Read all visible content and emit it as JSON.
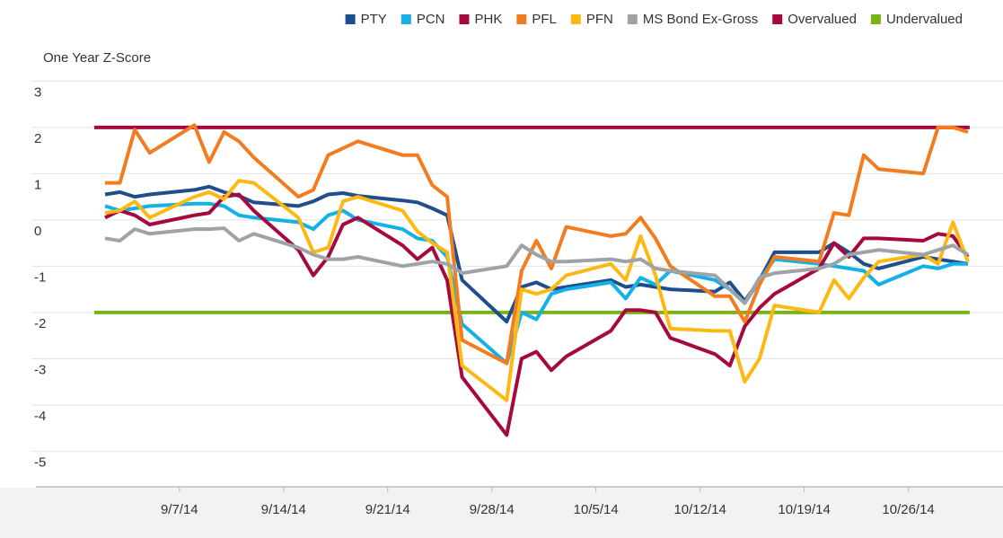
{
  "chart_data": {
    "type": "line",
    "y_label": "One Year Z-Score",
    "x": [
      "9/2/14",
      "9/3/14",
      "9/4/14",
      "9/5/14",
      "9/8/14",
      "9/9/14",
      "9/10/14",
      "9/11/14",
      "9/12/14",
      "9/15/14",
      "9/16/14",
      "9/17/14",
      "9/18/14",
      "9/19/14",
      "9/22/14",
      "9/23/14",
      "9/24/14",
      "9/25/14",
      "9/26/14",
      "9/29/14",
      "9/30/14",
      "10/1/14",
      "10/2/14",
      "10/3/14",
      "10/6/14",
      "10/7/14",
      "10/8/14",
      "10/9/14",
      "10/10/14",
      "10/13/14",
      "10/14/14",
      "10/15/14",
      "10/16/14",
      "10/17/14",
      "10/20/14",
      "10/21/14",
      "10/22/14",
      "10/23/14",
      "10/24/14",
      "10/27/14",
      "10/28/14",
      "10/29/14",
      "10/30/14"
    ],
    "xlim": [
      "8/26/14",
      "11/1/14"
    ],
    "xticks": [
      "9/7/14",
      "9/14/14",
      "9/21/14",
      "9/28/14",
      "10/5/14",
      "10/12/14",
      "10/19/14",
      "10/26/14"
    ],
    "ylim": [
      -5.77,
      3.5
    ],
    "yticks": [
      3,
      2,
      1,
      0,
      -1,
      -2,
      -3,
      -4,
      -5
    ],
    "grid": true,
    "legend": "top-right",
    "series": [
      {
        "name": "PTY",
        "color": "#1f4e8c",
        "values": [
          0.55,
          0.6,
          0.5,
          0.55,
          0.65,
          0.72,
          0.6,
          0.52,
          0.38,
          0.3,
          0.4,
          0.55,
          0.58,
          0.52,
          0.42,
          0.38,
          0.25,
          0.1,
          -1.3,
          -2.2,
          -1.45,
          -1.35,
          -1.5,
          -1.45,
          -1.3,
          -1.45,
          -1.4,
          -1.45,
          -1.5,
          -1.55,
          -1.35,
          -1.75,
          -1.3,
          -0.7,
          -0.7,
          -0.5,
          -0.7,
          -0.95,
          -1.05,
          -0.8,
          -0.85,
          -0.9,
          -0.95
        ]
      },
      {
        "name": "PCN",
        "color": "#14b1e7",
        "values": [
          0.3,
          0.2,
          0.25,
          0.3,
          0.35,
          0.35,
          0.3,
          0.1,
          0.05,
          -0.05,
          -0.2,
          0.1,
          0.2,
          0.0,
          -0.2,
          -0.4,
          -0.45,
          -0.8,
          -2.25,
          -3.1,
          -2.0,
          -2.15,
          -1.6,
          -1.5,
          -1.35,
          -1.7,
          -1.25,
          -1.4,
          -1.1,
          -1.3,
          -1.5,
          -1.8,
          -1.3,
          -0.85,
          -0.95,
          -1.0,
          -1.05,
          -1.1,
          -1.4,
          -1.0,
          -1.05,
          -0.95,
          -0.95
        ]
      },
      {
        "name": "PHK",
        "color": "#a5093f",
        "values": [
          0.05,
          0.2,
          0.1,
          -0.1,
          0.1,
          0.15,
          0.5,
          0.55,
          0.2,
          -0.65,
          -1.2,
          -0.8,
          -0.1,
          0.05,
          -0.55,
          -0.85,
          -0.6,
          -1.3,
          -3.4,
          -4.65,
          -3.0,
          -2.85,
          -3.25,
          -2.95,
          -2.4,
          -1.95,
          -1.95,
          -2.0,
          -2.55,
          -2.9,
          -3.15,
          -2.3,
          -1.9,
          -1.6,
          -1.05,
          -0.5,
          -0.8,
          -0.4,
          -0.4,
          -0.45,
          -0.3,
          -0.35,
          -0.8
        ]
      },
      {
        "name": "PFL",
        "color": "#f47c20",
        "values": [
          0.8,
          0.8,
          1.95,
          1.45,
          2.05,
          1.25,
          1.9,
          1.7,
          1.35,
          0.5,
          0.65,
          1.4,
          1.55,
          1.7,
          1.4,
          1.4,
          0.75,
          0.5,
          -2.6,
          -3.1,
          -1.1,
          -0.45,
          -1.05,
          -0.15,
          -0.35,
          -0.3,
          0.05,
          -0.4,
          -1.0,
          -1.65,
          -1.65,
          -2.2,
          -1.4,
          -0.8,
          -0.9,
          0.15,
          0.1,
          1.4,
          1.1,
          1.0,
          2.0,
          2.0,
          1.9
        ]
      },
      {
        "name": "PFN",
        "color": "#fdb913",
        "values": [
          0.15,
          0.2,
          0.4,
          0.05,
          0.5,
          0.6,
          0.45,
          0.85,
          0.8,
          0.05,
          -0.7,
          -0.6,
          0.4,
          0.5,
          0.2,
          -0.25,
          -0.5,
          -0.7,
          -3.15,
          -3.9,
          -1.5,
          -1.6,
          -1.5,
          -1.2,
          -0.95,
          -1.3,
          -0.35,
          -1.2,
          -2.35,
          -2.4,
          -2.4,
          -3.5,
          -3.0,
          -1.85,
          -2.0,
          -1.3,
          -1.7,
          -1.25,
          -0.9,
          -0.75,
          -0.95,
          -0.05,
          -0.9
        ]
      },
      {
        "name": "MS Bond Ex-Gross",
        "color": "#9ea3a8",
        "values": [
          -0.4,
          -0.45,
          -0.2,
          -0.3,
          -0.2,
          -0.2,
          -0.18,
          -0.45,
          -0.3,
          -0.6,
          -0.75,
          -0.85,
          -0.85,
          -0.8,
          -1.0,
          -0.95,
          -0.9,
          -0.95,
          -1.15,
          -1.0,
          -0.55,
          -0.75,
          -0.9,
          -0.9,
          -0.85,
          -0.9,
          -0.85,
          -1.05,
          -1.1,
          -1.2,
          -1.5,
          -1.8,
          -1.25,
          -1.15,
          -1.05,
          -0.95,
          -0.75,
          -0.7,
          -0.65,
          -0.75,
          -0.65,
          -0.55,
          -0.75
        ]
      },
      {
        "name": "Overvalued",
        "color": "#a5093f",
        "value": 2
      },
      {
        "name": "Undervalued",
        "color": "#7ab317",
        "value": -2
      }
    ]
  }
}
